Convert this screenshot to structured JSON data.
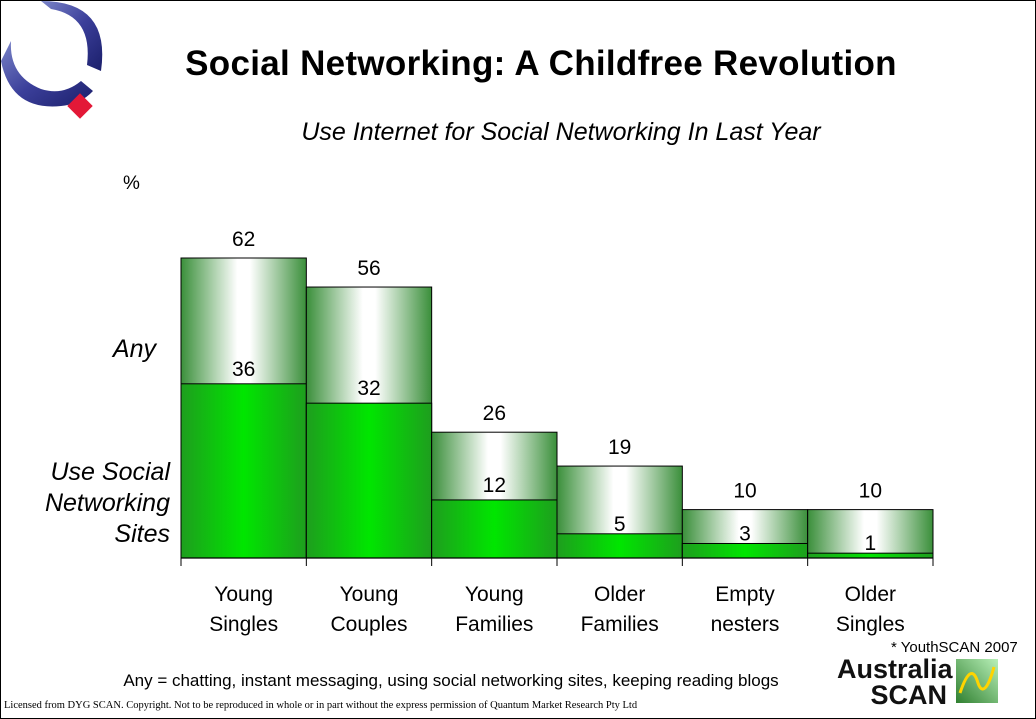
{
  "slide": {
    "title": "Social Networking: A Childfree Revolution",
    "subtitle": "Use Internet for Social Networking In Last Year",
    "label_any": "Any",
    "label_sites": "Use Social Networking Sites",
    "footnote": "* YouthSCAN 2007",
    "definition": "Any = chatting, instant messaging, using social networking sites, keeping reading blogs",
    "license": "Licensed from DYG SCAN. Copyright. Not to be reproduced in whole or in part without the express permission of Quantum Market Research Pty Ltd",
    "logo": {
      "line1": "Australia",
      "line2": "SCAN"
    }
  },
  "chart_data": {
    "type": "bar",
    "title": "Use Internet for Social Networking In Last Year",
    "ylabel": "%",
    "categories": [
      [
        "Young",
        "Singles"
      ],
      [
        "Young",
        "Couples"
      ],
      [
        "Young",
        "Families"
      ],
      [
        "Older",
        "Families"
      ],
      [
        "Empty",
        "nesters"
      ],
      [
        "Older",
        "Singles"
      ]
    ],
    "series": [
      {
        "name": "Any",
        "values": [
          62,
          56,
          26,
          19,
          10,
          10
        ]
      },
      {
        "name": "Use Social Networking Sites",
        "values": [
          36,
          32,
          12,
          5,
          3,
          1
        ]
      }
    ],
    "ylim": [
      0,
      62
    ],
    "grid": false,
    "colors": {
      "sites": "#00dd00",
      "sites_dark": "#1e9e1e",
      "any_edge": "#3a8f3a",
      "any_center": "#ffffff"
    }
  }
}
